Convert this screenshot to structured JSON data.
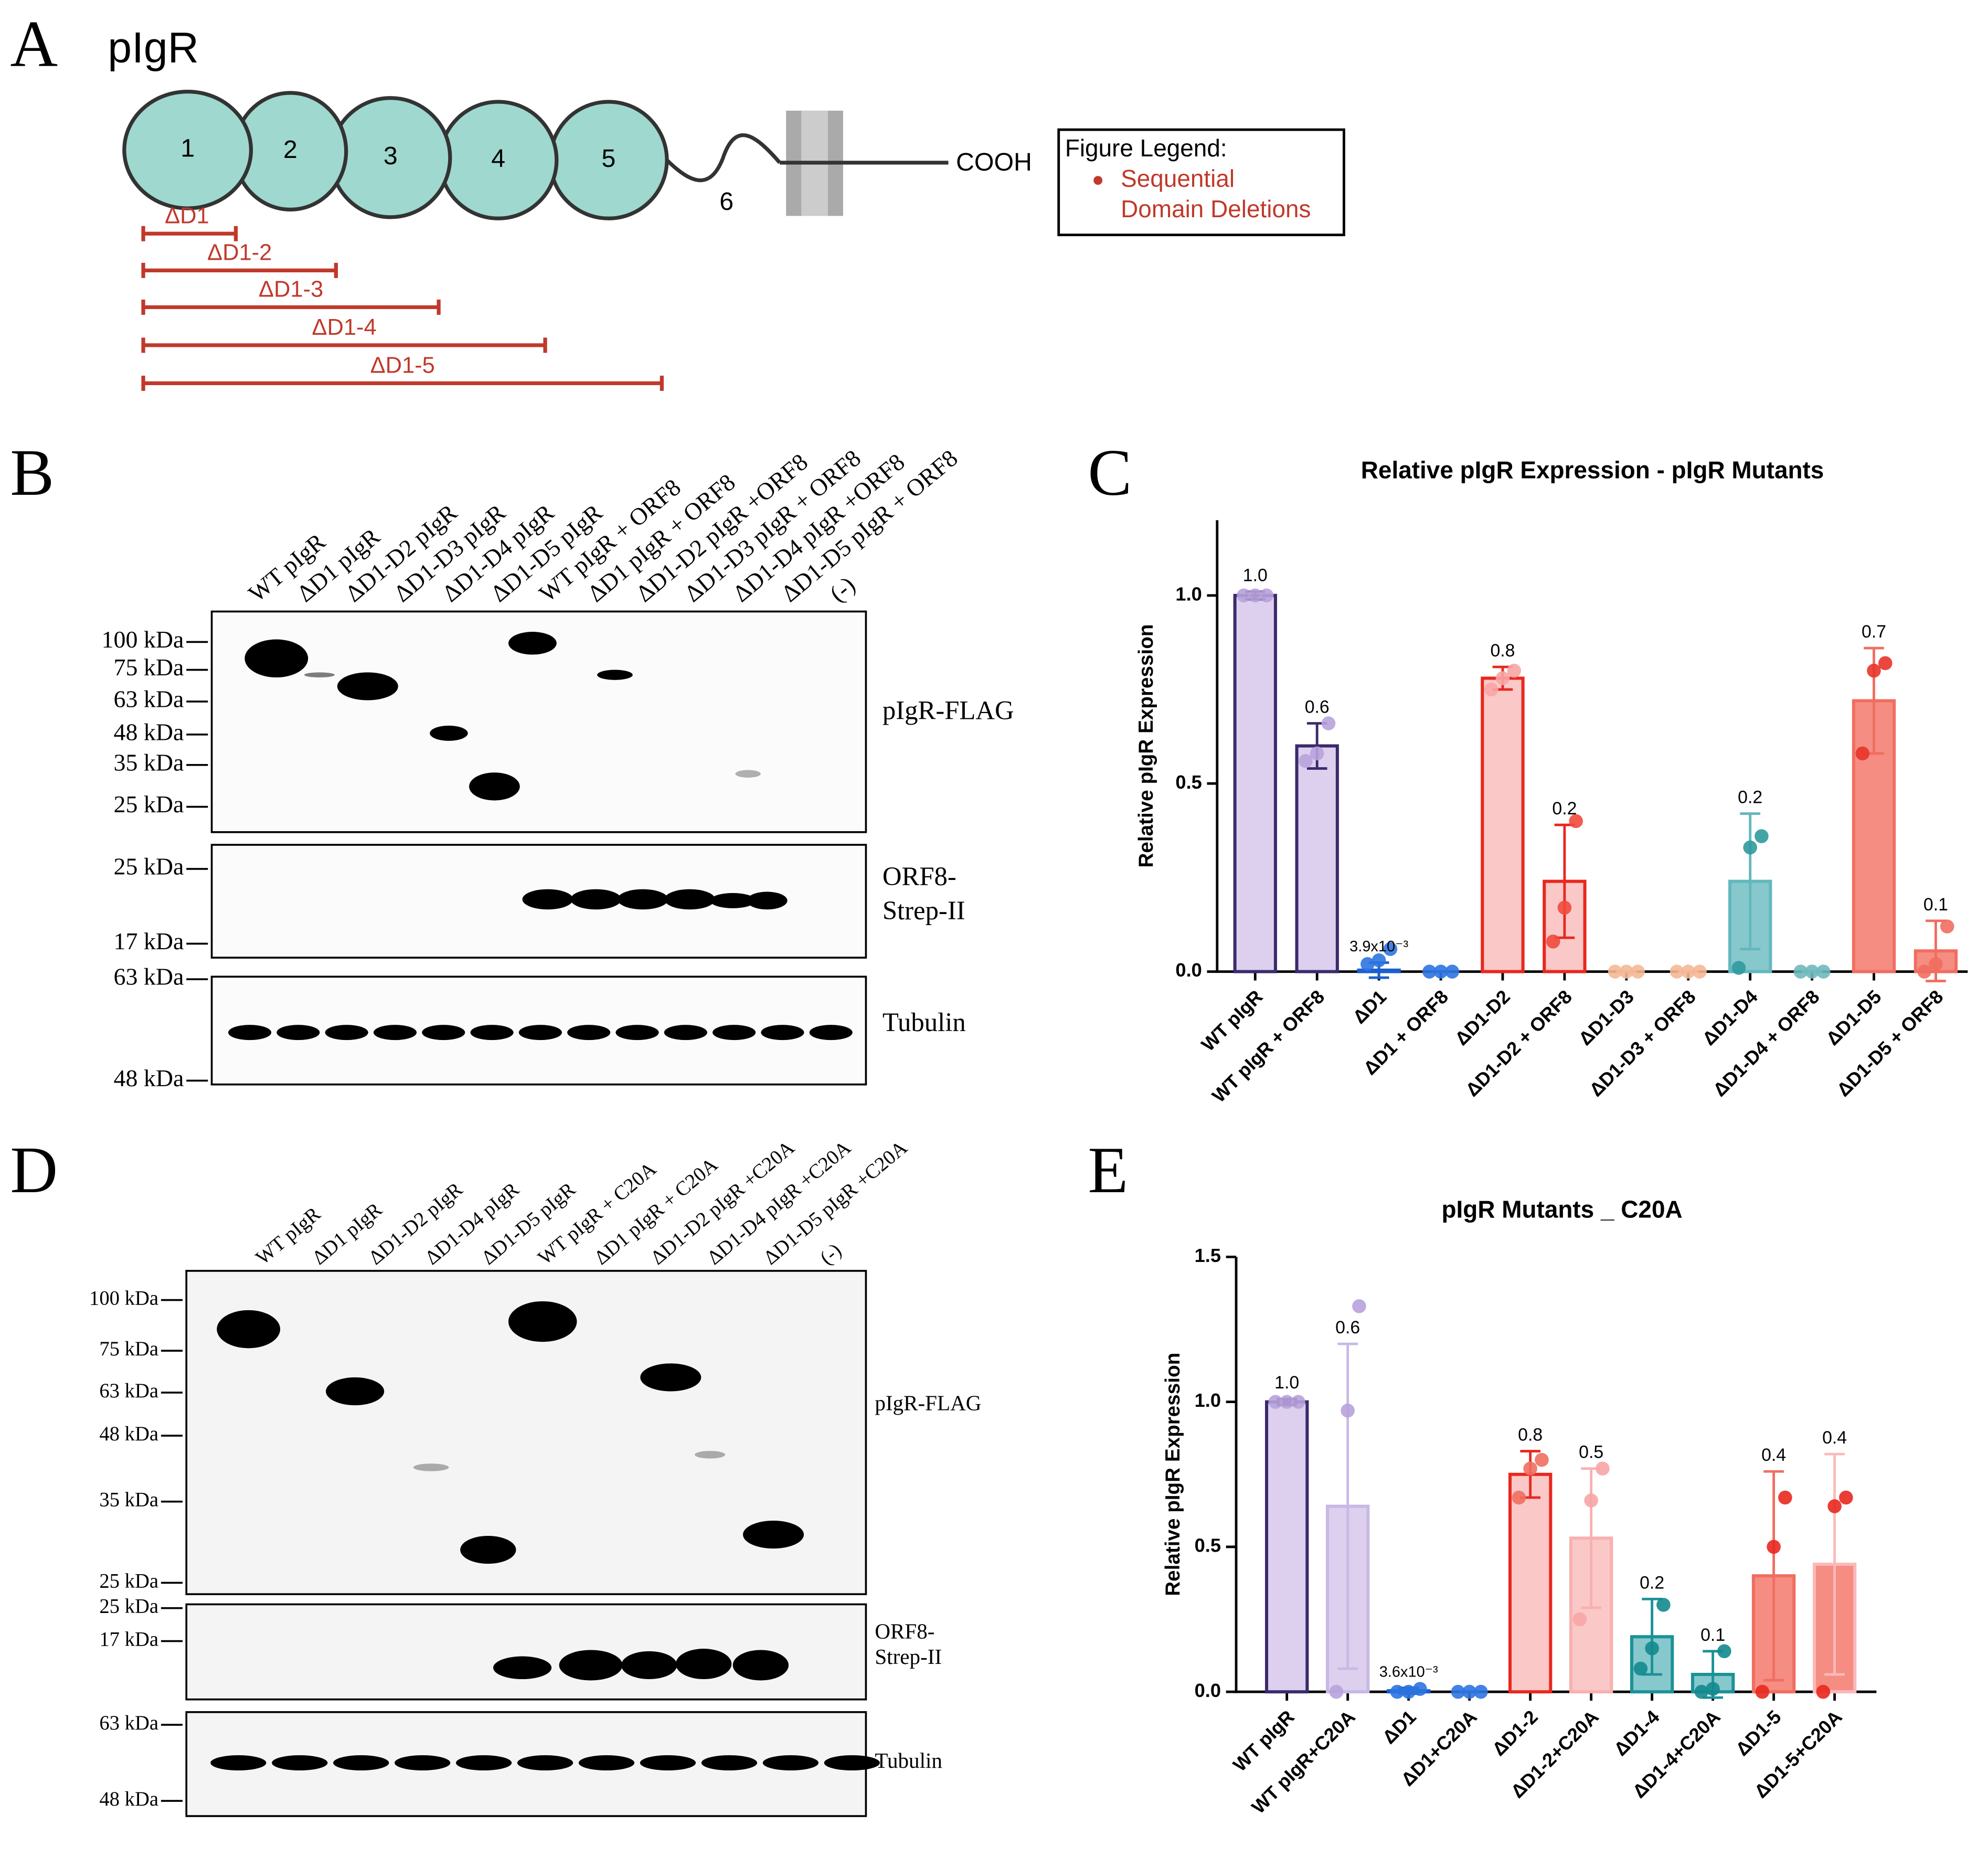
{
  "panel_letters": {
    "a": "A",
    "b": "B",
    "c": "C",
    "d": "D",
    "e": "E"
  },
  "panel_a": {
    "title": "pIgR",
    "domains": [
      "1",
      "2",
      "3",
      "4",
      "5"
    ],
    "domain6": "6",
    "terminus": "COOH",
    "deletions": [
      "ΔD1",
      "ΔD1-2",
      "ΔD1-3",
      "ΔD1-4",
      "ΔD1-5"
    ],
    "legend": {
      "title": "Figure Legend:",
      "lines": [
        "Sequential",
        "Domain Deletions"
      ]
    }
  },
  "panel_b": {
    "lanes": [
      "WT pIgR",
      "ΔD1 pIgR",
      "ΔD1-D2 pIgR",
      "ΔD1-D3 pIgR",
      "ΔD1-D4 pIgR",
      "ΔD1-D5 pIgR",
      "WT pIgR + ORF8",
      "ΔD1 pIgR + ORF8",
      "ΔD1-D2 pIgR +ORF8",
      "ΔD1-D3 pIgR + ORF8",
      "ΔD1-D4 pIgR +ORF8",
      "ΔD1-D5 pIgR + ORF8",
      "(-)"
    ],
    "blots": [
      {
        "name": [
          "pIgR-FLAG"
        ],
        "markers": [
          "100 kDa",
          "75 kDa",
          "63 kDa",
          "48 kDa",
          "35 kDa",
          "25 kDa"
        ]
      },
      {
        "name": [
          "ORF8-",
          "Strep-II"
        ],
        "markers": [
          "25 kDa",
          "17 kDa"
        ]
      },
      {
        "name": [
          "Tubulin"
        ],
        "markers": [
          "63 kDa",
          "48 kDa"
        ]
      }
    ]
  },
  "panel_d": {
    "lanes": [
      "WT pIgR",
      "ΔD1 pIgR",
      "ΔD1-D2 pIgR",
      "ΔD1-D4 pIgR",
      "ΔD1-D5 pIgR",
      "WT pIgR + C20A",
      "ΔD1 pIgR + C20A",
      "ΔD1-D2 pIgR +C20A",
      "ΔD1-D4 pIgR +C20A",
      "ΔD1-D5 pIgR +C20A",
      "(-)"
    ],
    "blots": [
      {
        "name": [
          "pIgR-FLAG"
        ],
        "markers": [
          "100 kDa",
          "75 kDa",
          "63 kDa",
          "48 kDa",
          "35 kDa",
          "25 kDa"
        ]
      },
      {
        "name": [
          "ORF8-",
          "Strep-II"
        ],
        "markers": [
          "25 kDa",
          "17 kDa"
        ]
      },
      {
        "name": [
          "Tubulin"
        ],
        "markers": [
          "63 kDa",
          "48 kDa"
        ]
      }
    ]
  },
  "chart_data": [
    {
      "type": "bar",
      "title": "Relative pIgR Expression - pIgR Mutants",
      "y_label": "Relative pIgR Expression",
      "categories": [
        "WT pIgR",
        "WT pIgR + ORF8",
        "ΔD1",
        "ΔD1 + ORF8",
        "ΔD1-D2",
        "ΔD1-D2 + ORF8",
        "ΔD1-D3",
        "ΔD1-D3 + ORF8",
        "ΔD1-D4",
        "ΔD1-D4 + ORF8",
        "ΔD1-D5",
        "ΔD1-D5 + ORF8"
      ],
      "values": [
        1.0,
        0.6,
        0.0039,
        0,
        0.78,
        0.24,
        0,
        0,
        0.24,
        0,
        0.72,
        0.055
      ],
      "value_labels": [
        "1.0",
        "0.6",
        "3.9x10⁻³",
        null,
        "0.8",
        "0.2",
        null,
        null,
        "0.2",
        null,
        "0.7",
        "0.1"
      ],
      "errors": [
        0.01,
        0.06,
        0.02,
        0,
        0.03,
        0.15,
        0,
        0,
        0.18,
        0,
        0.14,
        0.08
      ],
      "points": [
        [
          1,
          1,
          1
        ],
        [
          0.56,
          0.58,
          0.66
        ],
        [
          0.02,
          0.03,
          0.06
        ],
        [
          0,
          0,
          0
        ],
        [
          0.75,
          0.78,
          0.8
        ],
        [
          0.08,
          0.17,
          0.4
        ],
        [
          0,
          0,
          0
        ],
        [
          0,
          0,
          0
        ],
        [
          0.01,
          0.33,
          0.36
        ],
        [
          0,
          0,
          0
        ],
        [
          0.58,
          0.8,
          0.82
        ],
        [
          0,
          0.02,
          0.12
        ]
      ],
      "colors": [
        "#dcd0ee",
        "#dcd0ee",
        "#2d74e0",
        "#2d74e0",
        "#fbc8c8",
        "#fbc8c8",
        "#f7cdb6",
        "#f7cdb6",
        "#86c8cc",
        "#86c8cc",
        "#f58d82",
        "#f58d82"
      ],
      "edge_colors": [
        "#3b2a6b",
        "#3b2a6b",
        "#1a5fd0",
        "#1a5fd0",
        "#e8281e",
        "#e8281e",
        "#f0b090",
        "#f0b090",
        "#63b7bd",
        "#63b7bd",
        "#f06e60",
        "#f06e60"
      ],
      "point_colors": [
        "#b8a2dc",
        "#b8a2dc",
        "#2d74e0",
        "#2d74e0",
        "#f8a5a5",
        "#ef4a3c",
        "#f5b896",
        "#f5b896",
        "#2f9a9e",
        "#6fb9bd",
        "#e8342a",
        "#f06e60"
      ],
      "ylim": [
        0,
        1.2
      ],
      "yticks": [
        {
          "value": 0,
          "label": "0.0"
        },
        0.5,
        {
          "value": 1,
          "label": "1.0"
        }
      ]
    },
    {
      "type": "bar",
      "title": "pIgR Mutants _ C20A",
      "y_label": "Relative pIgR Expression",
      "categories": [
        "WT pIgR",
        "WT pIgR+C20A",
        "ΔD1",
        "ΔD1+C20A",
        "ΔD1-2",
        "ΔD1-2+C20A",
        "ΔD1-4",
        "ΔD1-4+C20A",
        "ΔD1-5",
        "ΔD1-5+C20A"
      ],
      "values": [
        1.0,
        0.64,
        0.0036,
        0,
        0.75,
        0.53,
        0.19,
        0.06,
        0.4,
        0.44
      ],
      "value_labels": [
        "1.0",
        "0.6",
        "3.6x10⁻³",
        null,
        "0.8",
        "0.5",
        "0.2",
        "0.1",
        "0.4",
        "0.4"
      ],
      "errors": [
        0.01,
        0.56,
        0.01,
        0,
        0.08,
        0.24,
        0.13,
        0.08,
        0.36,
        0.38
      ],
      "points": [
        [
          1,
          1,
          1
        ],
        [
          0,
          0.97,
          1.33
        ],
        [
          0,
          0,
          0.01
        ],
        [
          0,
          0,
          0
        ],
        [
          0.67,
          0.77,
          0.8
        ],
        [
          0.25,
          0.66,
          0.77
        ],
        [
          0.08,
          0.15,
          0.3
        ],
        [
          0,
          0.01,
          0.14
        ],
        [
          0,
          0.5,
          0.67
        ],
        [
          0,
          0.64,
          0.67
        ]
      ],
      "colors": [
        "#dcd0ee",
        "#dcd0ee",
        "#2d74e0",
        "#2d74e0",
        "#fbc8c8",
        "#fbc8c8",
        "#86c8cc",
        "#86c8cc",
        "#f58d82",
        "#f58d82"
      ],
      "edge_colors": [
        "#3b2a6b",
        "#c8b8e6",
        "#1a5fd0",
        "#1a5fd0",
        "#e8281e",
        "#f8b0b0",
        "#1a9298",
        "#1a9298",
        "#f06e60",
        "#fbbaba"
      ],
      "point_colors": [
        "#b8a2dc",
        "#b8a2dc",
        "#2d74e0",
        "#2d74e0",
        "#f06e60",
        "#f8a5a5",
        "#138a8e",
        "#138a8e",
        "#e8281e",
        "#e8281e"
      ],
      "ylim": [
        0,
        1.5
      ],
      "yticks": [
        {
          "value": 0,
          "label": "0.0"
        },
        0.5,
        {
          "value": 1,
          "label": "1.0"
        },
        1.5
      ]
    }
  ]
}
